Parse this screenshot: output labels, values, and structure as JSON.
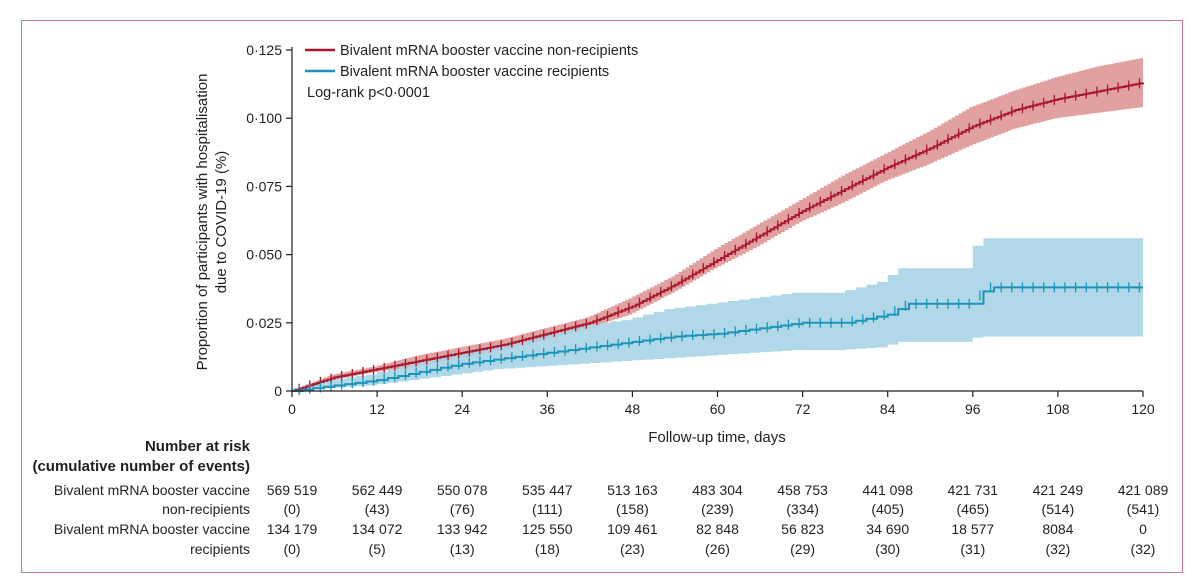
{
  "chart_data": {
    "type": "line",
    "subtype": "kaplan-meier cumulative incidence",
    "title": "",
    "xlabel": "Follow-up time, days",
    "ylabel_lines": [
      "Proportion of participants with hospitalisation",
      "due to COVID-19 (%)"
    ],
    "xlim": [
      0,
      120
    ],
    "ylim": [
      0,
      0.125
    ],
    "x_ticks": [
      0,
      12,
      24,
      36,
      48,
      60,
      72,
      84,
      96,
      108,
      120
    ],
    "x_tick_labels": [
      "0",
      "12",
      "24",
      "36",
      "48",
      "60",
      "72",
      "84",
      "96",
      "108",
      "120"
    ],
    "y_ticks": [
      0,
      0.025,
      0.05,
      0.075,
      0.1,
      0.125
    ],
    "y_tick_labels": [
      "0",
      "0·025",
      "0·050",
      "0·075",
      "0·100",
      "0·125"
    ],
    "legend_position": "top-left",
    "annotation": "Log-rank p<0·0001",
    "series": [
      {
        "name": "Bivalent mRNA booster vaccine non-recipients",
        "color": "#a8192e",
        "band_color": "#d98a89",
        "x": [
          0,
          6,
          12,
          18,
          24,
          30,
          36,
          42,
          48,
          54,
          60,
          66,
          72,
          78,
          84,
          90,
          96,
          102,
          108,
          114,
          120
        ],
        "y": [
          0,
          0.005,
          0.008,
          0.011,
          0.014,
          0.017,
          0.021,
          0.025,
          0.031,
          0.039,
          0.048,
          0.057,
          0.066,
          0.074,
          0.082,
          0.089,
          0.097,
          0.103,
          0.107,
          0.11,
          0.113
        ],
        "lower": [
          0,
          0.004,
          0.007,
          0.009,
          0.012,
          0.015,
          0.019,
          0.023,
          0.028,
          0.036,
          0.045,
          0.053,
          0.062,
          0.069,
          0.077,
          0.083,
          0.09,
          0.096,
          0.1,
          0.102,
          0.104
        ],
        "upper": [
          0,
          0.006,
          0.009,
          0.013,
          0.016,
          0.019,
          0.023,
          0.027,
          0.034,
          0.042,
          0.052,
          0.061,
          0.07,
          0.079,
          0.087,
          0.095,
          0.104,
          0.11,
          0.115,
          0.119,
          0.122
        ]
      },
      {
        "name": "Bivalent mRNA booster vaccine recipients",
        "color": "#1a94b8",
        "band_color": "#a8d4e6",
        "x": [
          0,
          6,
          12,
          18,
          24,
          30,
          36,
          42,
          48,
          54,
          60,
          66,
          72,
          78,
          84,
          87,
          96,
          98,
          108,
          114,
          120
        ],
        "y": [
          0,
          0.002,
          0.004,
          0.007,
          0.01,
          0.012,
          0.014,
          0.016,
          0.018,
          0.02,
          0.021,
          0.023,
          0.025,
          0.025,
          0.028,
          0.032,
          0.032,
          0.038,
          0.038,
          0.038,
          0.038
        ],
        "lower": [
          0,
          0.001,
          0.002,
          0.004,
          0.006,
          0.008,
          0.009,
          0.01,
          0.011,
          0.012,
          0.013,
          0.014,
          0.015,
          0.015,
          0.016,
          0.018,
          0.018,
          0.02,
          0.02,
          0.02,
          0.02
        ],
        "upper": [
          0,
          0.004,
          0.006,
          0.01,
          0.014,
          0.017,
          0.02,
          0.024,
          0.026,
          0.03,
          0.032,
          0.034,
          0.036,
          0.036,
          0.04,
          0.045,
          0.045,
          0.056,
          0.056,
          0.056,
          0.056
        ]
      }
    ]
  },
  "risk_table": {
    "heading_line1": "Number at risk",
    "heading_line2": "(cumulative number of events)",
    "groups": [
      {
        "label_line1": "Bivalent mRNA booster vaccine",
        "label_line2": "non-recipients",
        "at_risk": [
          "569 519",
          "562 449",
          "550 078",
          "535 447",
          "513 163",
          "483 304",
          "458 753",
          "441 098",
          "421 731",
          "421 249",
          "421 089"
        ],
        "events": [
          "(0)",
          "(43)",
          "(76)",
          "(111)",
          "(158)",
          "(239)",
          "(334)",
          "(405)",
          "(465)",
          "(514)",
          "(541)"
        ]
      },
      {
        "label_line1": "Bivalent mRNA booster vaccine",
        "label_line2": "recipients",
        "at_risk": [
          "134 179",
          "134 072",
          "133 942",
          "125 550",
          "109 461",
          "82 848",
          "56 823",
          "34 690",
          "18 577",
          "8084",
          "0"
        ],
        "events": [
          "(0)",
          "(5)",
          "(13)",
          "(18)",
          "(23)",
          "(26)",
          "(29)",
          "(30)",
          "(31)",
          "(32)",
          "(32)"
        ]
      }
    ]
  }
}
